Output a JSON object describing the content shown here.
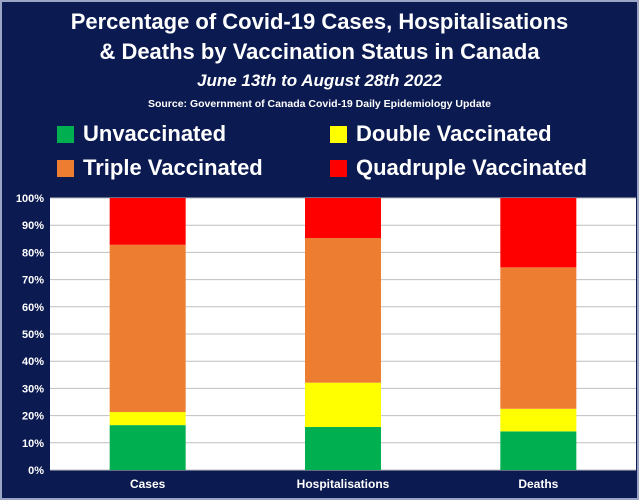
{
  "title_line1": "Percentage of Covid-19 Cases, Hospitalisations",
  "title_line2": "& Deaths by Vaccination Status in Canada",
  "subtitle": "June 13th to August 28th 2022",
  "source": "Source: Government of Canada  Covid-19 Daily Epidemiology Update",
  "colors": {
    "background": "#0b1a50",
    "plot_area": "#ffffff",
    "unvaccinated": "#00b050",
    "double": "#ffff00",
    "triple": "#ed7d31",
    "quadruple": "#ff0000"
  },
  "chart_data": {
    "type": "bar",
    "stacked": true,
    "title": "Percentage of Covid-19 Cases, Hospitalisations & Deaths by Vaccination Status in Canada",
    "categories": [
      "Cases",
      "Hospitalisations",
      "Deaths"
    ],
    "series": [
      {
        "name": "Unvaccinated",
        "color": "#00b050",
        "values": [
          16.5,
          15.8,
          14.2
        ]
      },
      {
        "name": "Double Vaccinated",
        "color": "#ffff00",
        "values": [
          4.8,
          16.3,
          8.3
        ]
      },
      {
        "name": "Triple Vaccinated",
        "color": "#ed7d31",
        "values": [
          61.5,
          53.2,
          52.0
        ]
      },
      {
        "name": "Quadruple Vaccinated",
        "color": "#ff0000",
        "values": [
          17.2,
          14.7,
          25.5
        ]
      }
    ],
    "yticks": [
      "0%",
      "10%",
      "20%",
      "30%",
      "40%",
      "50%",
      "60%",
      "70%",
      "80%",
      "90%",
      "100%"
    ],
    "ylim": [
      0,
      100
    ],
    "xlabel": "",
    "ylabel": "",
    "grid": true
  }
}
